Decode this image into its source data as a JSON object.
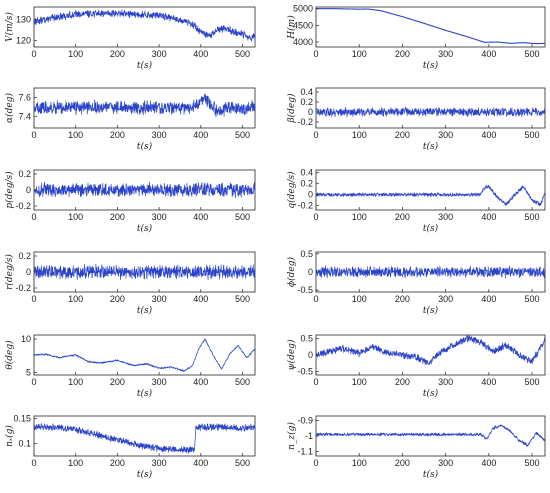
{
  "chart_data": [
    {
      "type": "line",
      "id": "V",
      "ylabel": "V(m/s)",
      "xlabel": "t(s)",
      "xlim": [
        0,
        530
      ],
      "ylim": [
        117,
        136
      ],
      "xticks": [
        0,
        100,
        200,
        300,
        400,
        500
      ],
      "yticks": [
        120,
        130
      ],
      "ytick_labels": [
        "120",
        "130"
      ],
      "shape": "V_shape",
      "noise": 2.0,
      "x": [
        0,
        50,
        100,
        150,
        200,
        250,
        300,
        350,
        380,
        400,
        420,
        440,
        460,
        480,
        500,
        520,
        530
      ],
      "values": [
        129,
        131,
        132.5,
        133,
        133,
        132.5,
        132,
        130,
        128,
        124,
        122,
        125,
        126,
        124,
        123,
        121,
        123
      ]
    },
    {
      "type": "line",
      "id": "H",
      "ylabel": "H(m)",
      "xlabel": "t(s)",
      "xlim": [
        0,
        530
      ],
      "ylim": [
        3850,
        5050
      ],
      "xticks": [
        0,
        100,
        200,
        300,
        400,
        500
      ],
      "yticks": [
        4000,
        4500,
        5000
      ],
      "ytick_labels": [
        "4000",
        "4500",
        "5000"
      ],
      "noise": 0,
      "x": [
        0,
        50,
        100,
        120,
        150,
        200,
        250,
        300,
        350,
        390,
        420,
        450,
        480,
        510,
        530
      ],
      "values": [
        5000,
        4998,
        4985,
        4990,
        4940,
        4760,
        4560,
        4350,
        4160,
        3990,
        4000,
        3960,
        3980,
        3950,
        3960
      ]
    },
    {
      "type": "line",
      "id": "alpha",
      "ylabel": "α(deg)",
      "xlabel": "t(s)",
      "xlim": [
        0,
        530
      ],
      "ylim": [
        7.28,
        7.7
      ],
      "xticks": [
        0,
        100,
        200,
        300,
        400,
        500
      ],
      "yticks": [
        7.4,
        7.6
      ],
      "ytick_labels": [
        "7.4",
        "7.6"
      ],
      "noise": 0.08,
      "x": [
        0,
        100,
        200,
        300,
        380,
        400,
        410,
        420,
        440,
        470,
        500,
        530
      ],
      "values": [
        7.49,
        7.5,
        7.5,
        7.49,
        7.49,
        7.56,
        7.6,
        7.55,
        7.45,
        7.5,
        7.48,
        7.5
      ]
    },
    {
      "type": "line",
      "id": "beta",
      "ylabel": "β(deg)",
      "xlabel": "t(s)",
      "xlim": [
        0,
        530
      ],
      "ylim": [
        -0.32,
        0.48
      ],
      "xticks": [
        0,
        100,
        200,
        300,
        400,
        500
      ],
      "yticks": [
        -0.2,
        0,
        0.2,
        0.4
      ],
      "ytick_labels": [
        "-0.2",
        "0",
        "0.2",
        "0.4"
      ],
      "noise": 0.1,
      "x": [
        0,
        530
      ],
      "values": [
        0.0,
        0.0
      ]
    },
    {
      "type": "line",
      "id": "p",
      "ylabel": "p(deg/s)",
      "xlabel": "t(s)",
      "xlim": [
        0,
        530
      ],
      "ylim": [
        -0.25,
        0.25
      ],
      "xticks": [
        0,
        100,
        200,
        300,
        400,
        500
      ],
      "yticks": [
        -0.2,
        0,
        0.2
      ],
      "ytick_labels": [
        "-0.2",
        "0",
        "0.2"
      ],
      "noise": 0.1,
      "x": [
        0,
        530
      ],
      "values": [
        0.0,
        0.0
      ]
    },
    {
      "type": "line",
      "id": "q",
      "ylabel": "q(deg/s)",
      "xlabel": "t(s)",
      "xlim": [
        0,
        530
      ],
      "ylim": [
        -0.28,
        0.45
      ],
      "xticks": [
        0,
        100,
        200,
        300,
        400,
        500
      ],
      "yticks": [
        -0.2,
        0,
        0.2,
        0.4
      ],
      "ytick_labels": [
        "-0.2",
        "0",
        "0.2",
        "0.4"
      ],
      "noise": 0.04,
      "x": [
        0,
        380,
        390,
        400,
        420,
        440,
        460,
        480,
        500,
        520,
        530
      ],
      "values": [
        0.0,
        0.0,
        0.12,
        0.15,
        -0.05,
        -0.18,
        0.0,
        0.15,
        -0.1,
        -0.18,
        0.05
      ]
    },
    {
      "type": "line",
      "id": "r",
      "ylabel": "r(deg/s)",
      "xlabel": "t(s)",
      "xlim": [
        0,
        530
      ],
      "ylim": [
        -0.25,
        0.25
      ],
      "xticks": [
        0,
        100,
        200,
        300,
        400,
        500
      ],
      "yticks": [
        -0.2,
        0,
        0.2
      ],
      "ytick_labels": [
        "-0.2",
        "0",
        "0.2"
      ],
      "noise": 0.1,
      "x": [
        0,
        530
      ],
      "values": [
        0.0,
        0.0
      ]
    },
    {
      "type": "line",
      "id": "phi",
      "ylabel": "ϕ(deg)",
      "xlabel": "t(s)",
      "xlim": [
        0,
        530
      ],
      "ylim": [
        -0.55,
        0.55
      ],
      "xticks": [
        0,
        100,
        200,
        300,
        400,
        500
      ],
      "yticks": [
        -0.5,
        0,
        0.5
      ],
      "ytick_labels": [
        "-0.5",
        "0",
        "0.5"
      ],
      "noise": 0.17,
      "x": [
        0,
        530
      ],
      "values": [
        0.0,
        0.0
      ]
    },
    {
      "type": "line",
      "id": "theta",
      "ylabel": "θ(deg)",
      "xlabel": "t(s)",
      "xlim": [
        0,
        530
      ],
      "ylim": [
        4.6,
        10.6
      ],
      "xticks": [
        0,
        100,
        200,
        300,
        400,
        500
      ],
      "yticks": [
        5,
        10
      ],
      "ytick_labels": [
        "5",
        "10"
      ],
      "noise": 0.15,
      "x": [
        0,
        30,
        60,
        100,
        130,
        160,
        200,
        240,
        270,
        300,
        330,
        360,
        380,
        395,
        410,
        430,
        450,
        470,
        490,
        510,
        530
      ],
      "values": [
        7.6,
        7.7,
        7.2,
        7.6,
        6.6,
        6.4,
        6.8,
        6.0,
        6.3,
        5.6,
        5.8,
        5.2,
        6.0,
        8.5,
        10.0,
        7.5,
        5.5,
        7.8,
        9.0,
        7.2,
        8.5
      ]
    },
    {
      "type": "line",
      "id": "psi",
      "ylabel": "ψ(deg)",
      "xlabel": "t(s)",
      "xlim": [
        0,
        530
      ],
      "ylim": [
        -0.6,
        0.6
      ],
      "xticks": [
        0,
        100,
        200,
        300,
        400,
        500
      ],
      "yticks": [
        -0.5,
        0,
        0.5
      ],
      "ytick_labels": [
        "-0.5",
        "0",
        "0.5"
      ],
      "noise": 0.12,
      "x": [
        0,
        30,
        60,
        100,
        130,
        160,
        200,
        230,
        260,
        290,
        320,
        350,
        380,
        410,
        440,
        470,
        500,
        530
      ],
      "values": [
        0.0,
        0.1,
        0.2,
        0.05,
        0.25,
        0.1,
        0.0,
        -0.05,
        -0.25,
        0.1,
        0.3,
        0.5,
        0.4,
        0.1,
        0.3,
        0.0,
        -0.2,
        0.45
      ]
    },
    {
      "type": "line",
      "id": "nx",
      "ylabel": "nₓ(g)",
      "xlabel": "t(s)",
      "xlim": [
        0,
        530
      ],
      "ylim": [
        0.075,
        0.155
      ],
      "xticks": [
        0,
        100,
        200,
        300,
        400,
        500
      ],
      "yticks": [
        0.1,
        0.15
      ],
      "ytick_labels": [
        "0.1",
        "0.15"
      ],
      "noise": 0.008,
      "x": [
        0,
        50,
        100,
        150,
        200,
        250,
        300,
        350,
        385,
        388,
        400,
        450,
        500,
        530
      ],
      "values": [
        0.133,
        0.133,
        0.128,
        0.118,
        0.107,
        0.097,
        0.09,
        0.088,
        0.087,
        0.13,
        0.133,
        0.133,
        0.13,
        0.133
      ]
    },
    {
      "type": "line",
      "id": "nz",
      "ylabel": "n_z(g)",
      "xlabel": "t(s)",
      "xlim": [
        0,
        530
      ],
      "ylim": [
        -1.13,
        -0.87
      ],
      "xticks": [
        0,
        100,
        200,
        300,
        400,
        500
      ],
      "yticks": [
        -1.1,
        -1,
        -0.9
      ],
      "ytick_labels": [
        "-1.1",
        "-1",
        "-0.9"
      ],
      "noise": 0.012,
      "x": [
        0,
        380,
        395,
        410,
        430,
        450,
        470,
        490,
        510,
        530
      ],
      "values": [
        -0.99,
        -0.99,
        -1.02,
        -0.95,
        -0.93,
        -0.97,
        -1.03,
        -1.06,
        -0.98,
        -1.03
      ]
    }
  ]
}
